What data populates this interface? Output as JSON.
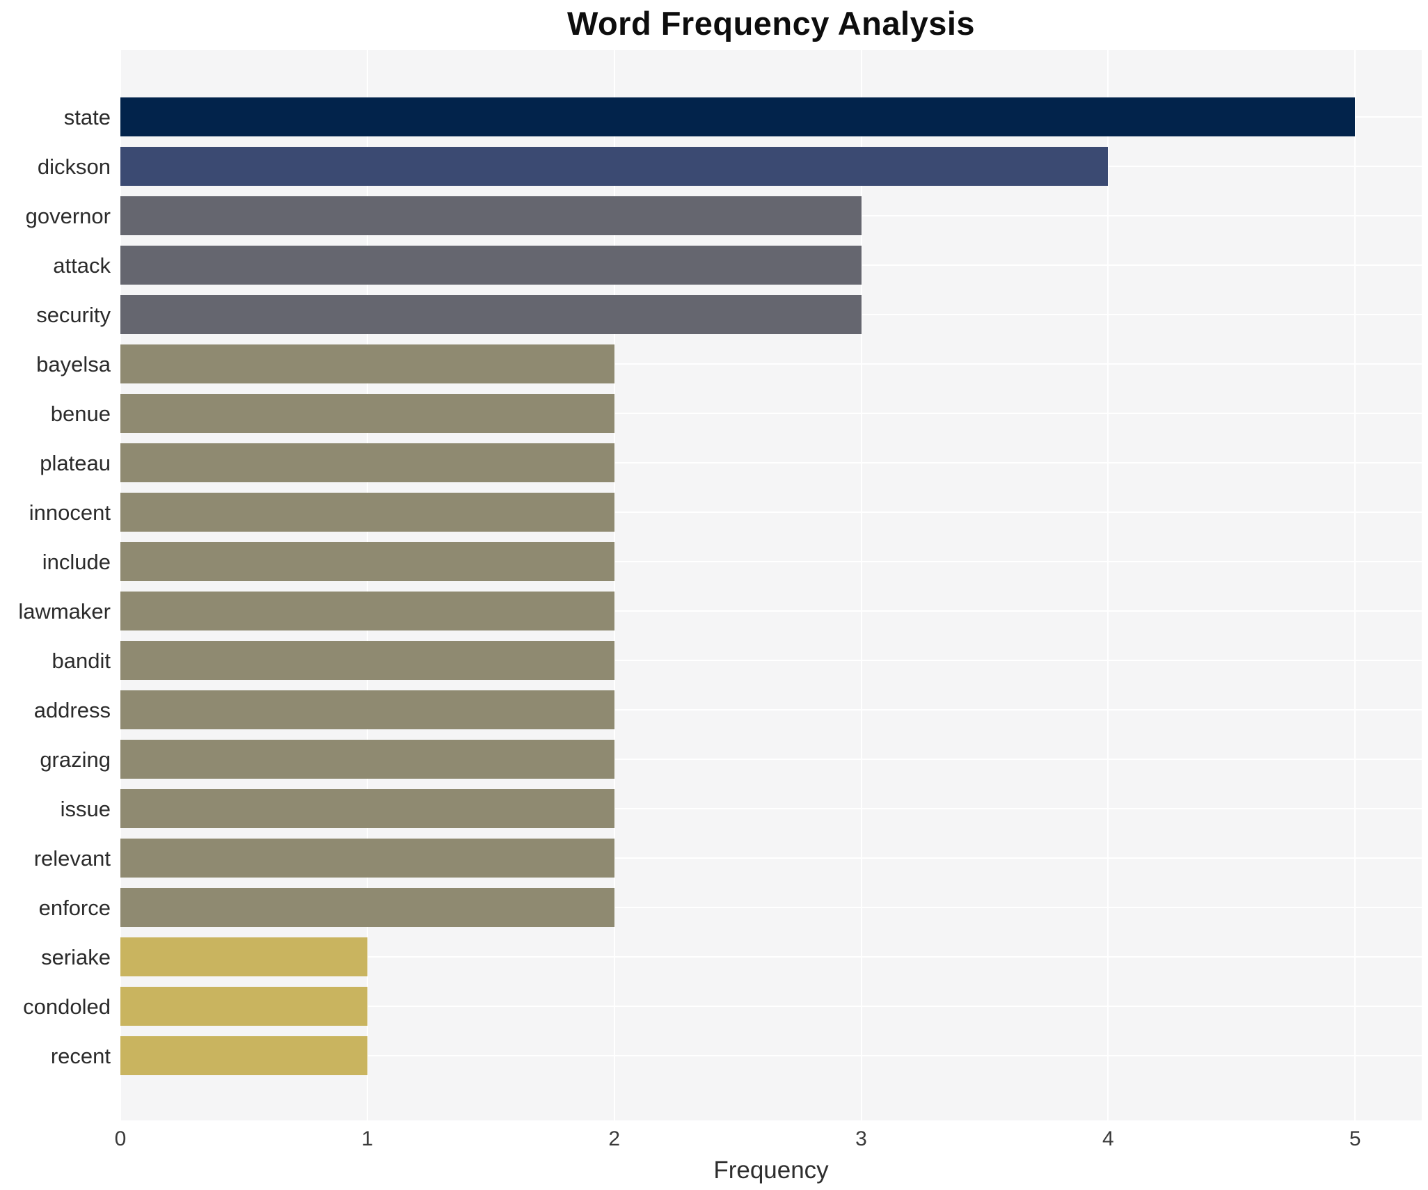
{
  "chart_data": {
    "type": "bar",
    "orientation": "horizontal",
    "title": "Word Frequency Analysis",
    "xlabel": "Frequency",
    "ylabel": "",
    "categories": [
      "state",
      "dickson",
      "governor",
      "attack",
      "security",
      "bayelsa",
      "benue",
      "plateau",
      "innocent",
      "include",
      "lawmaker",
      "bandit",
      "address",
      "grazing",
      "issue",
      "relevant",
      "enforce",
      "seriake",
      "condoled",
      "recent"
    ],
    "values": [
      5,
      4,
      3,
      3,
      3,
      2,
      2,
      2,
      2,
      2,
      2,
      2,
      2,
      2,
      2,
      2,
      2,
      1,
      1,
      1
    ],
    "bar_colors": [
      "#02234b",
      "#3b4a72",
      "#65666f",
      "#65666f",
      "#65666f",
      "#8f8a71",
      "#8f8a71",
      "#8f8a71",
      "#8f8a71",
      "#8f8a71",
      "#8f8a71",
      "#8f8a71",
      "#8f8a71",
      "#8f8a71",
      "#8f8a71",
      "#8f8a71",
      "#8f8a71",
      "#c9b45f",
      "#c9b45f",
      "#c9b45f"
    ],
    "xticks": [
      0,
      1,
      2,
      3,
      4,
      5
    ],
    "xlim": [
      0,
      5.27
    ],
    "grid": true,
    "legend": "none",
    "plot_bg_color": "#f5f5f6",
    "grid_color": "#ffffff",
    "page_bg_color": "#ffffff"
  }
}
